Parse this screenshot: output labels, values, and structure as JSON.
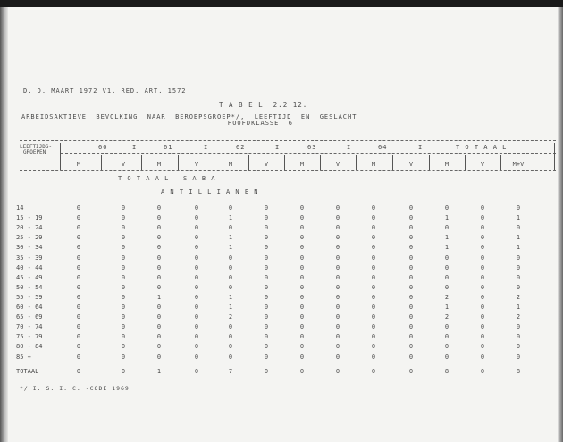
{
  "header_line": "D. D. MAART 1972 V1. RED. ART. 1572",
  "table_title": "T A B E L  2.2.12.",
  "subtitle": "ARBEIDSAKTIEVE  BEVOLKING  NAAR  BEROEPSGROEP*/,  LEEFTIJD  EN  GESLACHT",
  "subtitle2": "HOOFDKLASSE  6",
  "row_header": [
    "LEEFTIJDS-",
    "GROEPEN"
  ],
  "groups": [
    "60",
    "61",
    "62",
    "63",
    "64",
    "T O T A A L"
  ],
  "subcols": [
    "M",
    "V",
    "M",
    "V",
    "M",
    "V",
    "M",
    "V",
    "M",
    "V",
    "M",
    "V",
    "M+V"
  ],
  "section": "T O T A A L   S A B A",
  "subsection": "A N T I L L I A N E N",
  "rows": [
    {
      "label": "14",
      "values": [
        "0",
        "0",
        "0",
        "0",
        "0",
        "0",
        "0",
        "0",
        "0",
        "0",
        "0",
        "0",
        "0"
      ]
    },
    {
      "label": "15 - 19",
      "values": [
        "0",
        "0",
        "0",
        "0",
        "1",
        "0",
        "0",
        "0",
        "0",
        "0",
        "1",
        "0",
        "1"
      ]
    },
    {
      "label": "20 - 24",
      "values": [
        "0",
        "0",
        "0",
        "0",
        "0",
        "0",
        "0",
        "0",
        "0",
        "0",
        "0",
        "0",
        "0"
      ]
    },
    {
      "label": "25 - 29",
      "values": [
        "0",
        "0",
        "0",
        "0",
        "1",
        "0",
        "0",
        "0",
        "0",
        "0",
        "1",
        "0",
        "1"
      ]
    },
    {
      "label": "30 - 34",
      "values": [
        "0",
        "0",
        "0",
        "0",
        "1",
        "0",
        "0",
        "0",
        "0",
        "0",
        "1",
        "0",
        "1"
      ]
    },
    {
      "label": "35 - 39",
      "values": [
        "0",
        "0",
        "0",
        "0",
        "0",
        "0",
        "0",
        "0",
        "0",
        "0",
        "0",
        "0",
        "0"
      ]
    },
    {
      "label": "40 - 44",
      "values": [
        "0",
        "0",
        "0",
        "0",
        "0",
        "0",
        "0",
        "0",
        "0",
        "0",
        "0",
        "0",
        "0"
      ]
    },
    {
      "label": "45 - 49",
      "values": [
        "0",
        "0",
        "0",
        "0",
        "0",
        "0",
        "0",
        "0",
        "0",
        "0",
        "0",
        "0",
        "0"
      ]
    },
    {
      "label": "50 - 54",
      "values": [
        "0",
        "0",
        "0",
        "0",
        "0",
        "0",
        "0",
        "0",
        "0",
        "0",
        "0",
        "0",
        "0"
      ]
    },
    {
      "label": "55 - 59",
      "values": [
        "0",
        "0",
        "1",
        "0",
        "1",
        "0",
        "0",
        "0",
        "0",
        "0",
        "2",
        "0",
        "2"
      ]
    },
    {
      "label": "60 - 64",
      "values": [
        "0",
        "0",
        "0",
        "0",
        "1",
        "0",
        "0",
        "0",
        "0",
        "0",
        "1",
        "0",
        "1"
      ]
    },
    {
      "label": "65 - 69",
      "values": [
        "0",
        "0",
        "0",
        "0",
        "2",
        "0",
        "0",
        "0",
        "0",
        "0",
        "2",
        "0",
        "2"
      ]
    },
    {
      "label": "70 - 74",
      "values": [
        "0",
        "0",
        "0",
        "0",
        "0",
        "0",
        "0",
        "0",
        "0",
        "0",
        "0",
        "0",
        "0"
      ]
    },
    {
      "label": "75 - 79",
      "values": [
        "0",
        "0",
        "0",
        "0",
        "0",
        "0",
        "0",
        "0",
        "0",
        "0",
        "0",
        "0",
        "0"
      ]
    },
    {
      "label": "80 - 84",
      "values": [
        "0",
        "0",
        "0",
        "0",
        "0",
        "0",
        "0",
        "0",
        "0",
        "0",
        "0",
        "0",
        "0"
      ]
    },
    {
      "label": "85 +",
      "values": [
        "0",
        "0",
        "0",
        "0",
        "0",
        "0",
        "0",
        "0",
        "0",
        "0",
        "0",
        "0",
        "0"
      ]
    }
  ],
  "total": {
    "label": "TOTAAL",
    "values": [
      "0",
      "0",
      "1",
      "0",
      "7",
      "0",
      "0",
      "0",
      "0",
      "0",
      "8",
      "0",
      "8"
    ]
  },
  "footnote": "*/ I. S. I. C. -CODE 1969"
}
